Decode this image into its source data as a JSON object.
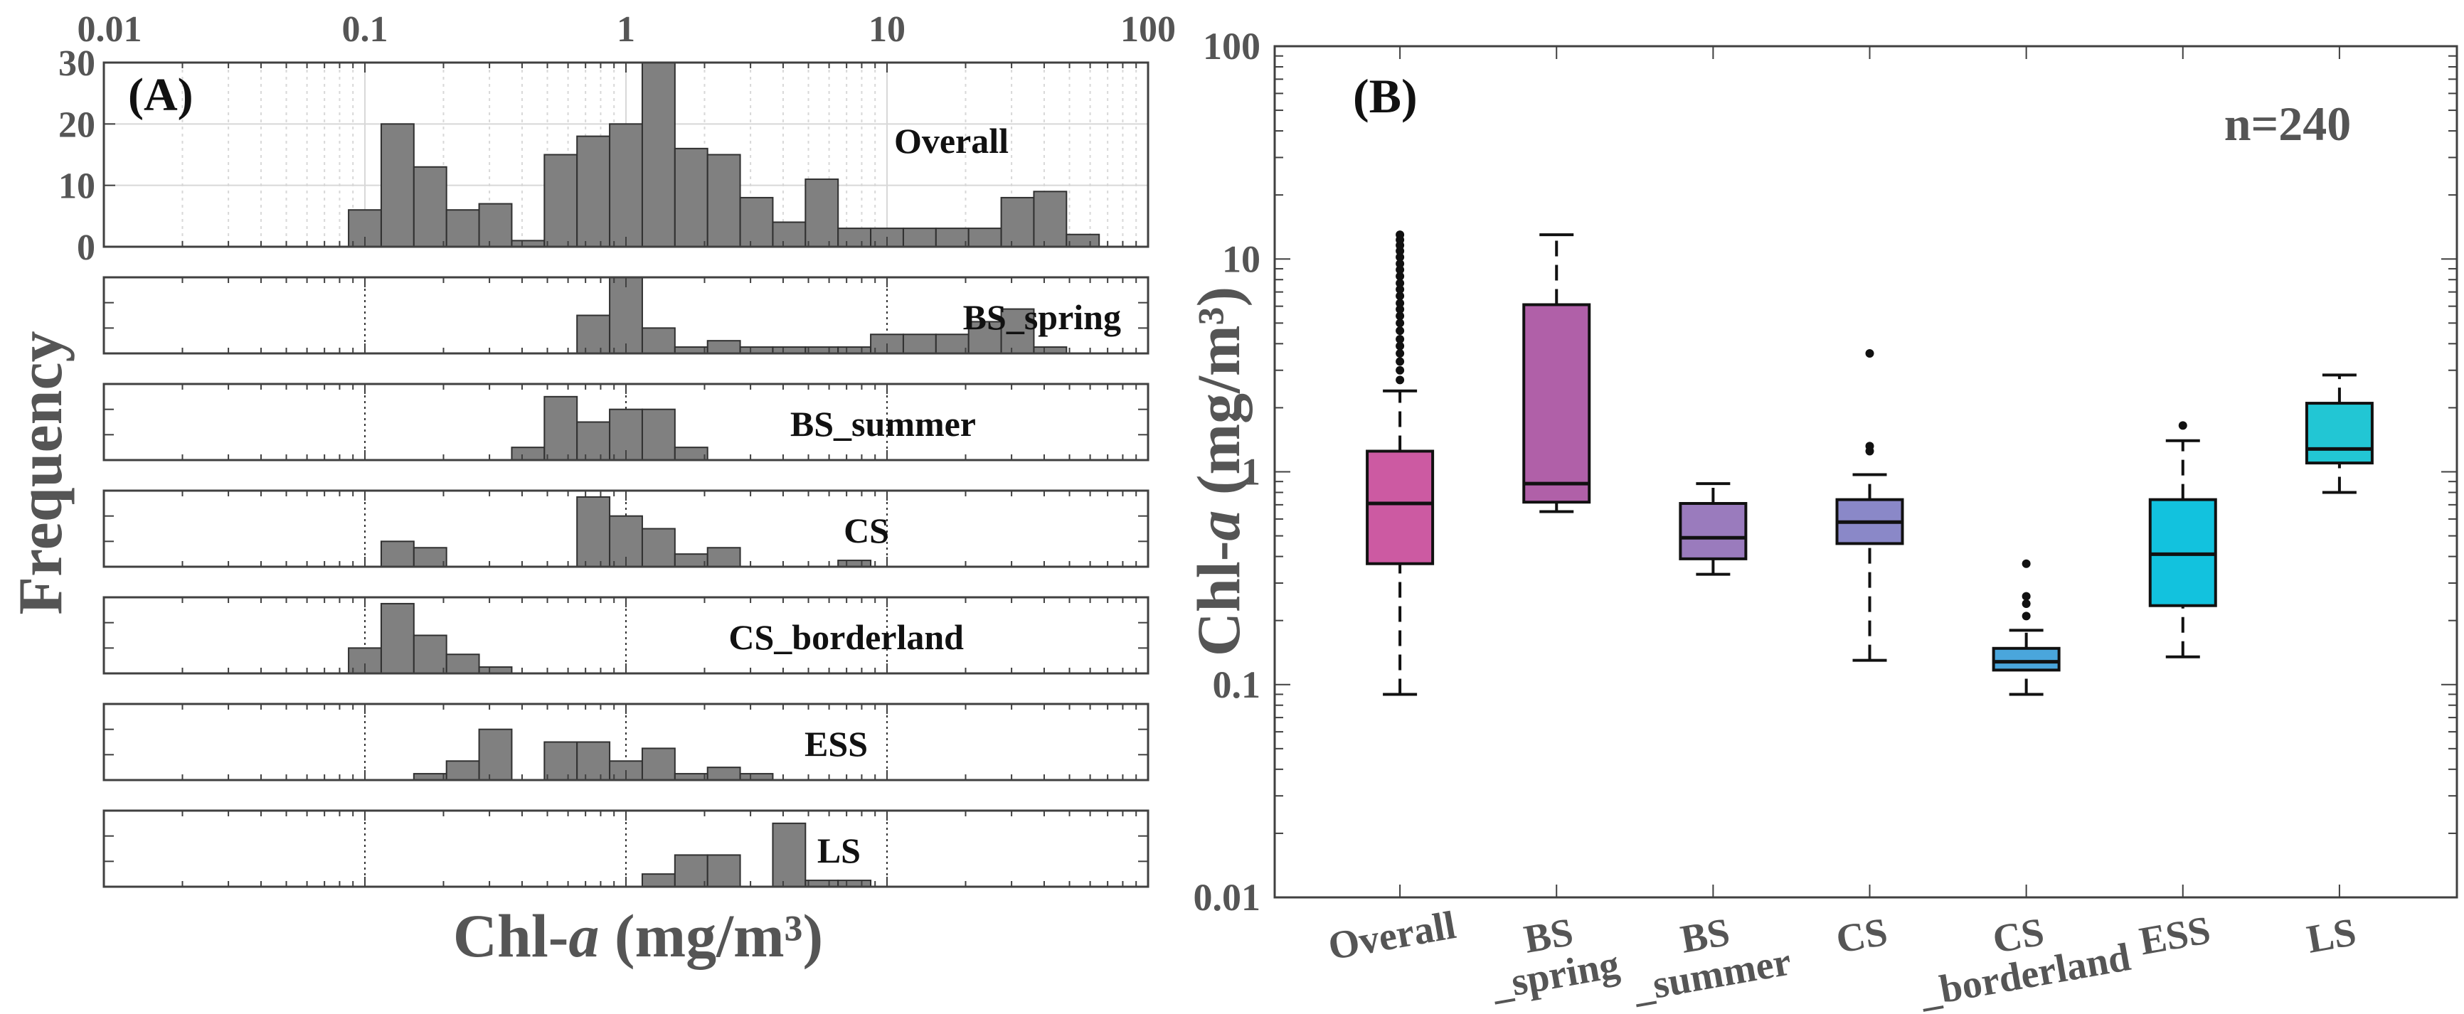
{
  "colors": {
    "axis": "#404040",
    "text": "#555555",
    "bar_fill": "#808080",
    "bar_stroke": "#303030",
    "grid": "#d8d8d8"
  },
  "chart_data": [
    {
      "type": "bar",
      "kind": "histogram-log-x",
      "panel_label": "(A)",
      "xlabel_prefix": "Chl-",
      "xlabel_italic": "a",
      "xlabel_suffix": " (mg/m³)",
      "ylabel": "Frequency",
      "xlim": [
        0.01,
        100
      ],
      "x_ticks": [
        {
          "value": 0.01,
          "label": "0.01"
        },
        {
          "value": 0.1,
          "label": "0.1"
        },
        {
          "value": 1,
          "label": "1"
        },
        {
          "value": 10,
          "label": "10"
        },
        {
          "value": 100,
          "label": "100"
        }
      ],
      "bins_per_decade": 8,
      "first_bin_left": 0.0866,
      "y_ticks_overall": [
        {
          "value": 0,
          "label": "0"
        },
        {
          "value": 10,
          "label": "10"
        },
        {
          "value": 20,
          "label": "20"
        },
        {
          "value": 30,
          "label": "30"
        }
      ],
      "series": [
        {
          "name": "Overall",
          "ylim": [
            0,
            30
          ],
          "values": [
            6,
            20,
            13,
            6,
            7,
            1,
            15,
            18,
            20,
            30,
            16,
            15,
            8,
            4,
            11,
            3,
            3,
            3,
            3,
            3,
            8,
            9,
            2
          ]
        },
        {
          "name": "BS_spring",
          "ylim": [
            0,
            12
          ],
          "values": [
            0,
            0,
            0,
            0,
            0,
            0,
            0,
            6,
            12,
            4,
            1,
            2,
            1,
            1,
            1,
            1,
            3,
            3,
            3,
            5,
            7,
            1,
            0
          ]
        },
        {
          "name": "BS_summer",
          "ylim": [
            0,
            12
          ],
          "values": [
            0,
            0,
            0,
            0,
            0,
            2,
            10,
            6,
            8,
            8,
            2,
            0,
            0,
            0,
            0,
            0,
            0,
            0,
            0,
            0,
            0,
            0,
            0
          ]
        },
        {
          "name": "CS",
          "ylim": [
            0,
            12
          ],
          "values": [
            0,
            4,
            3,
            0,
            0,
            0,
            0,
            11,
            8,
            6,
            2,
            3,
            0,
            0,
            0,
            1,
            0,
            0,
            0,
            0,
            0,
            0,
            0
          ]
        },
        {
          "name": "CS_borderland",
          "ylim": [
            0,
            12
          ],
          "values": [
            4,
            11,
            6,
            3,
            1,
            0,
            0,
            0,
            0,
            0,
            0,
            0,
            0,
            0,
            0,
            0,
            0,
            0,
            0,
            0,
            0,
            0,
            0
          ]
        },
        {
          "name": "ESS",
          "ylim": [
            0,
            12
          ],
          "values": [
            0,
            0,
            1,
            3,
            8,
            0,
            6,
            6,
            3,
            5,
            1,
            2,
            1,
            0,
            0,
            0,
            0,
            0,
            0,
            0,
            0,
            0,
            0
          ]
        },
        {
          "name": "LS",
          "ylim": [
            0,
            12
          ],
          "values": [
            0,
            0,
            0,
            0,
            0,
            0,
            0,
            0,
            0,
            2,
            5,
            5,
            0,
            10,
            1,
            1,
            0,
            0,
            0,
            0,
            0,
            0,
            0
          ]
        }
      ]
    },
    {
      "type": "box",
      "panel_label": "(B)",
      "annotation": "n=240",
      "ylabel_prefix": "Chl-",
      "ylabel_italic": "a",
      "ylabel_suffix": " (mg/m³)",
      "yscale": "log",
      "ylim": [
        0.01,
        100
      ],
      "y_ticks": [
        {
          "value": 0.01,
          "label": "0.01"
        },
        {
          "value": 0.1,
          "label": "0.1"
        },
        {
          "value": 1,
          "label": "1"
        },
        {
          "value": 10,
          "label": "10"
        },
        {
          "value": 100,
          "label": "100"
        }
      ],
      "categories": [
        {
          "name": "Overall",
          "label_lines": [
            "Overall"
          ]
        },
        {
          "name": "BS_spring",
          "label_lines": [
            "BS",
            "_spring"
          ]
        },
        {
          "name": "BS_summer",
          "label_lines": [
            "BS",
            "_summer"
          ]
        },
        {
          "name": "CS",
          "label_lines": [
            "CS"
          ]
        },
        {
          "name": "CS_borderland",
          "label_lines": [
            "CS",
            "_borderland"
          ]
        },
        {
          "name": "ESS",
          "label_lines": [
            "ESS"
          ]
        },
        {
          "name": "LS",
          "label_lines": [
            "LS"
          ]
        }
      ],
      "boxes": [
        {
          "name": "Overall",
          "whisker_low": 0.09,
          "q1": 0.37,
          "median": 0.71,
          "q3": 1.25,
          "whisker_high": 2.4,
          "color": "#cc5aa2",
          "outliers": [
            2.7,
            3.0,
            3.3,
            3.6,
            3.9,
            4.2,
            4.6,
            5.0,
            5.4,
            5.8,
            6.2,
            6.7,
            7.2,
            7.7,
            8.3,
            8.9,
            9.5,
            10.2,
            10.9,
            11.6,
            12.3,
            13.0
          ]
        },
        {
          "name": "BS_spring",
          "whisker_low": 0.65,
          "q1": 0.72,
          "median": 0.88,
          "q3": 6.1,
          "whisker_high": 13.0,
          "color": "#b060a8",
          "outliers": []
        },
        {
          "name": "BS_summer",
          "whisker_low": 0.33,
          "q1": 0.39,
          "median": 0.49,
          "q3": 0.71,
          "whisker_high": 0.88,
          "color": "#9a7bbd",
          "outliers": []
        },
        {
          "name": "CS",
          "whisker_low": 0.13,
          "q1": 0.46,
          "median": 0.58,
          "q3": 0.74,
          "whisker_high": 0.97,
          "color": "#8a88c8",
          "outliers": [
            1.25,
            1.32,
            3.6
          ]
        },
        {
          "name": "CS_borderland",
          "whisker_low": 0.09,
          "q1": 0.117,
          "median": 0.128,
          "q3": 0.148,
          "whisker_high": 0.18,
          "color": "#4aa6dc",
          "outliers": [
            0.21,
            0.24,
            0.26,
            0.37
          ]
        },
        {
          "name": "ESS",
          "whisker_low": 0.135,
          "q1": 0.235,
          "median": 0.41,
          "q3": 0.74,
          "whisker_high": 1.4,
          "color": "#12c2de",
          "outliers": [
            1.65
          ]
        },
        {
          "name": "LS",
          "whisker_low": 0.8,
          "q1": 1.1,
          "median": 1.28,
          "q3": 2.1,
          "whisker_high": 2.85,
          "color": "#22c6d4",
          "outliers": []
        }
      ]
    }
  ]
}
